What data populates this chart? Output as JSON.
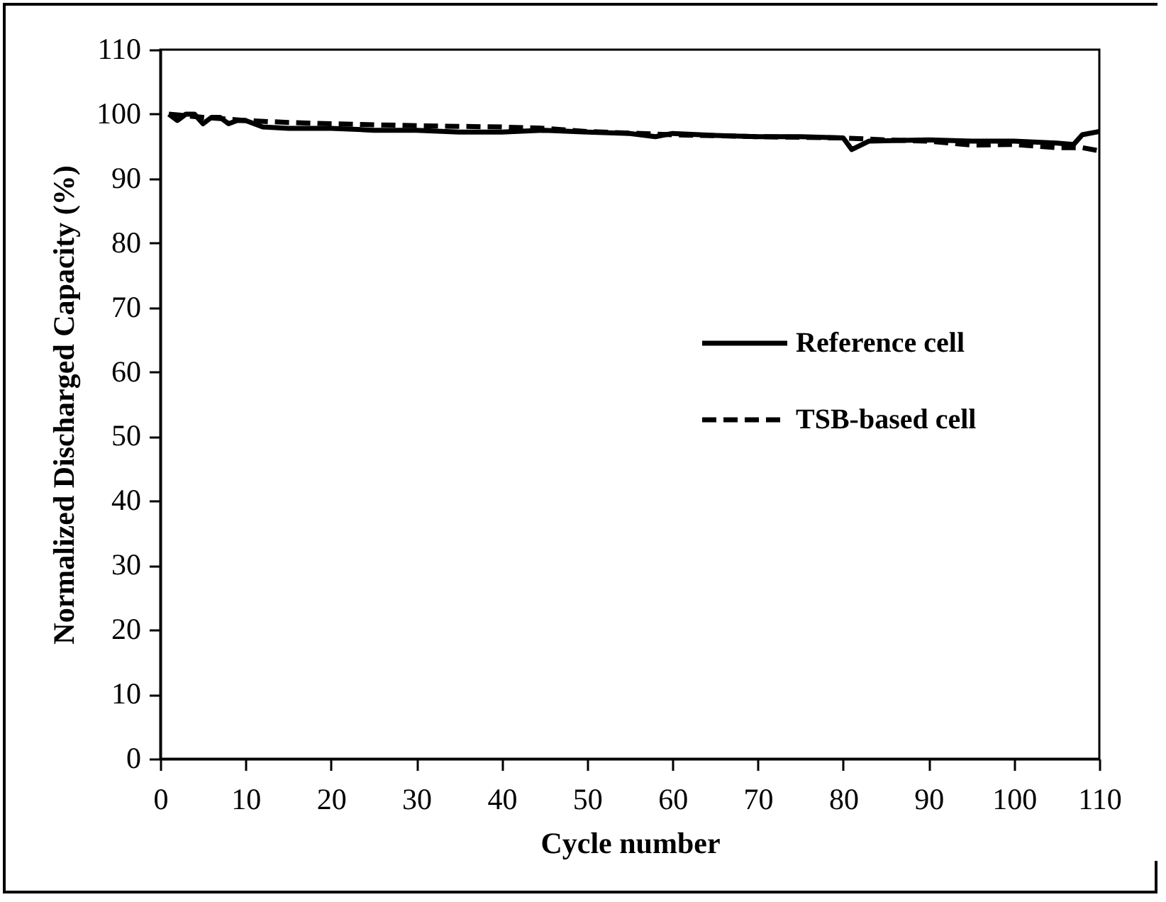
{
  "chart_data": {
    "type": "line",
    "xlabel": "Cycle number",
    "ylabel": "Normalized  Discharged Capacity  (%)",
    "xlim": [
      0,
      110
    ],
    "xticks": [
      0,
      10,
      20,
      30,
      40,
      50,
      60,
      70,
      80,
      90,
      100,
      110
    ],
    "ylim": [
      0,
      110
    ],
    "yticks": [
      0,
      10,
      20,
      30,
      40,
      50,
      60,
      70,
      80,
      90,
      100,
      110
    ],
    "legend": "right",
    "grid": false,
    "series": [
      {
        "name": "Reference cell",
        "color": "#000000",
        "line_style": "solid",
        "x": [
          1,
          2,
          3,
          4,
          5,
          6,
          7,
          8,
          9,
          10,
          12,
          15,
          20,
          25,
          30,
          35,
          40,
          45,
          50,
          55,
          58,
          60,
          65,
          70,
          75,
          80,
          81,
          83,
          90,
          95,
          100,
          105,
          107,
          108,
          110
        ],
        "values": [
          100,
          99,
          100,
          100,
          98.5,
          99.5,
          99.5,
          98.5,
          99,
          99,
          98,
          97.8,
          97.8,
          97.5,
          97.5,
          97.2,
          97.2,
          97.5,
          97.2,
          97,
          96.5,
          97,
          96.7,
          96.5,
          96.5,
          96.3,
          94.5,
          95.8,
          96,
          95.8,
          95.8,
          95.5,
          95.3,
          96.8,
          97.3
        ]
      },
      {
        "name": "TSB-based cell",
        "color": "#000000",
        "line_style": "dashed",
        "x": [
          1,
          5,
          10,
          15,
          20,
          30,
          40,
          45,
          50,
          60,
          70,
          80,
          85,
          90,
          95,
          100,
          105,
          108,
          110
        ],
        "values": [
          100,
          99.5,
          99,
          98.7,
          98.5,
          98.2,
          98,
          97.8,
          97.3,
          96.8,
          96.5,
          96.3,
          96,
          95.8,
          95.2,
          95.3,
          94.8,
          94.8,
          94.3
        ]
      }
    ]
  }
}
